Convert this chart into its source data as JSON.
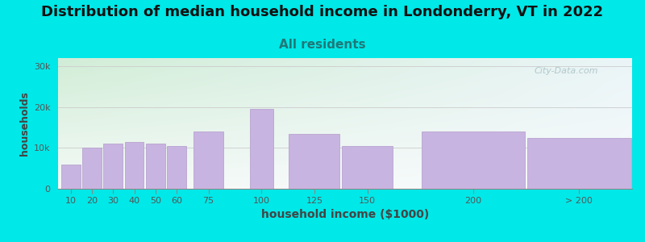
{
  "title": "Distribution of median household income in Londonderry, VT in 2022",
  "subtitle": "All residents",
  "xlabel": "household income ($1000)",
  "ylabel": "households",
  "bar_labels": [
    "10",
    "20",
    "30",
    "40",
    "50",
    "60",
    "75",
    "100",
    "125",
    "150",
    "200",
    "> 200"
  ],
  "bar_values": [
    6000,
    10000,
    11000,
    11500,
    11000,
    10500,
    14000,
    19500,
    13500,
    10500,
    14000,
    12500
  ],
  "bar_color": "#c8b4e0",
  "bar_edgecolor": "#b8a4d0",
  "bg_outer": "#00e8e8",
  "bg_gradient_topleft": "#d0ecd8",
  "bg_gradient_bottomright": "#f0f4f8",
  "title_fontsize": 13,
  "subtitle_fontsize": 11,
  "subtitle_color": "#207878",
  "ylabel_fontsize": 9,
  "xlabel_fontsize": 10,
  "ytick_labels": [
    "0",
    "10k",
    "20k",
    "30k"
  ],
  "ytick_values": [
    0,
    10000,
    20000,
    30000
  ],
  "ylim": [
    0,
    32000
  ],
  "watermark": "City-Data.com",
  "bar_positions": [
    10,
    20,
    30,
    40,
    50,
    60,
    75,
    100,
    125,
    150,
    200,
    250
  ],
  "bar_widths": [
    9,
    9,
    9,
    9,
    9,
    9,
    14,
    11,
    24,
    24,
    49,
    49
  ],
  "xlim": [
    4,
    275
  ]
}
